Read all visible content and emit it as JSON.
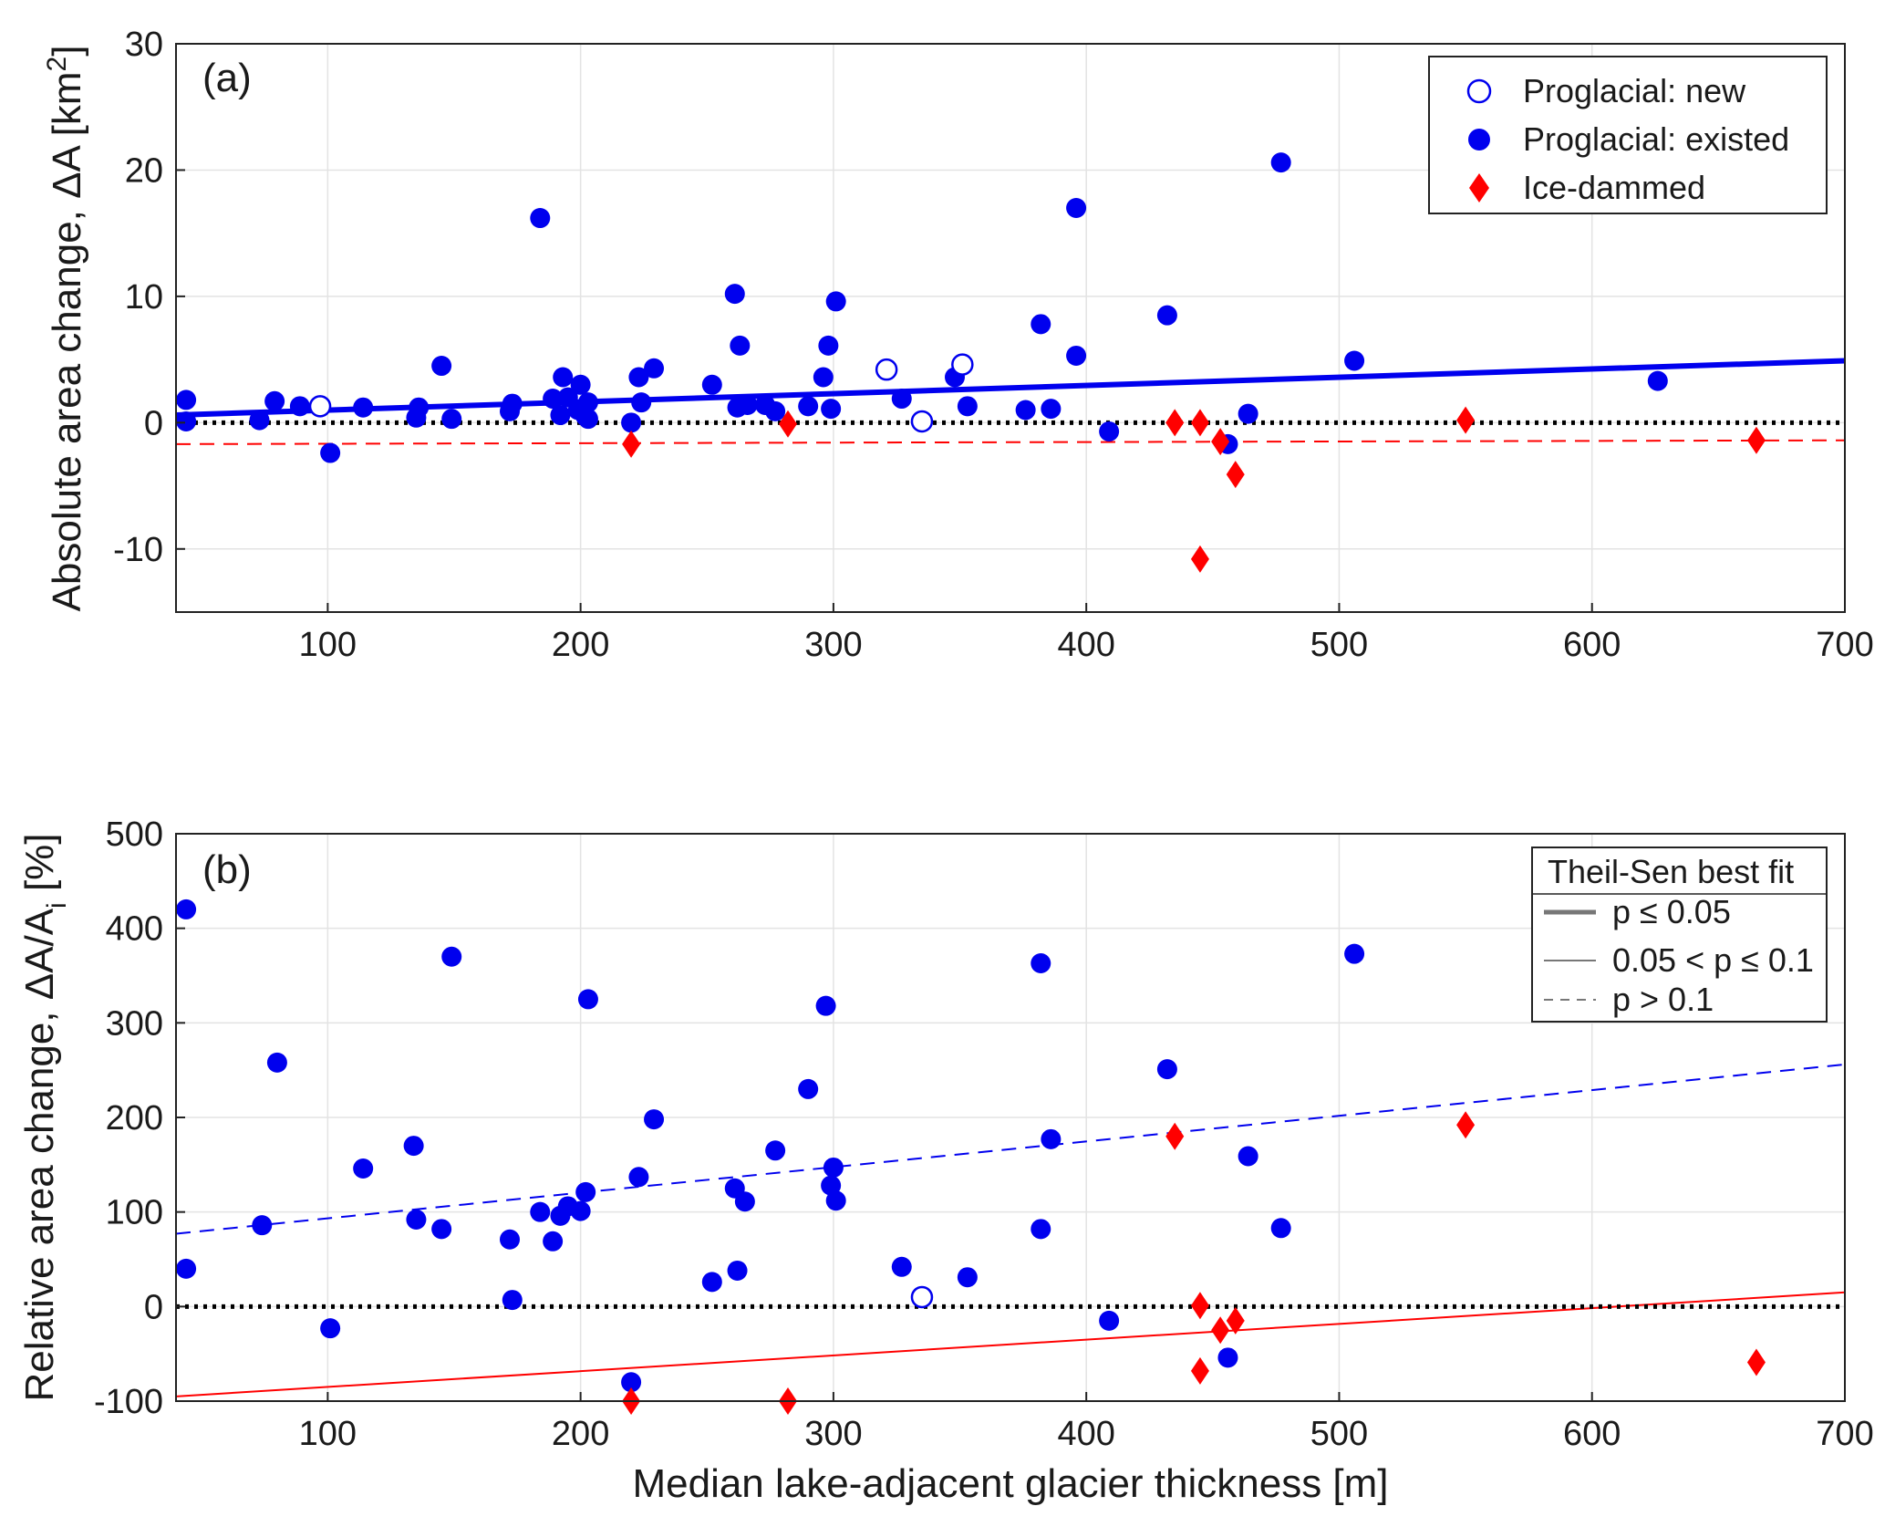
{
  "chart_data": [
    {
      "panel": "(a)",
      "type": "scatter",
      "xlabel": "Median lake-adjacent glacier thickness [m]",
      "ylabel": "Absolute area change, ΔA [km²]",
      "ylabel_parts": [
        "Absolute area change, ΔA [km",
        "2",
        "]"
      ],
      "xlim": [
        40,
        700
      ],
      "ylim": [
        -15,
        30
      ],
      "xticks": [
        100,
        200,
        300,
        400,
        500,
        600,
        700
      ],
      "yticks": [
        -10,
        0,
        10,
        20,
        30
      ],
      "grid": true,
      "legend": {
        "placement": "top-right",
        "entries": [
          {
            "label": "Proglacial: new",
            "marker": "open-circle",
            "color": "#0000ee"
          },
          {
            "label": "Proglacial: existed",
            "marker": "filled-circle",
            "color": "#0000ee"
          },
          {
            "label": "Ice-dammed",
            "marker": "diamond",
            "color": "#ff0000"
          }
        ]
      },
      "series": [
        {
          "marker": "filled-circle",
          "color": "#0000ee",
          "points": [
            [
              44,
              1.8
            ],
            [
              44,
              0.1
            ],
            [
              73,
              0.2
            ],
            [
              79,
              1.7
            ],
            [
              89,
              1.3
            ],
            [
              101,
              -2.4
            ],
            [
              114,
              1.2
            ],
            [
              135,
              0.4
            ],
            [
              136,
              1.2
            ],
            [
              145,
              4.5
            ],
            [
              149,
              0.3
            ],
            [
              172,
              0.9
            ],
            [
              173,
              1.5
            ],
            [
              184,
              16.2
            ],
            [
              189,
              1.9
            ],
            [
              192,
              0.6
            ],
            [
              193,
              3.6
            ],
            [
              195,
              2.0
            ],
            [
              199,
              1.0
            ],
            [
              200,
              3.0
            ],
            [
              202,
              0.5
            ],
            [
              203,
              0.3
            ],
            [
              203,
              1.6
            ],
            [
              220,
              0.0
            ],
            [
              223,
              3.6
            ],
            [
              224,
              1.6
            ],
            [
              229,
              4.3
            ],
            [
              252,
              3.0
            ],
            [
              261,
              10.2
            ],
            [
              262,
              1.2
            ],
            [
              263,
              6.1
            ],
            [
              266,
              1.4
            ],
            [
              273,
              1.4
            ],
            [
              277,
              0.9
            ],
            [
              290,
              1.3
            ],
            [
              296,
              3.6
            ],
            [
              298,
              6.1
            ],
            [
              299,
              1.1
            ],
            [
              301,
              9.6
            ],
            [
              327,
              1.9
            ],
            [
              348,
              3.6
            ],
            [
              353,
              1.3
            ],
            [
              376,
              1.0
            ],
            [
              382,
              7.8
            ],
            [
              386,
              1.1
            ],
            [
              396,
              17.0
            ],
            [
              396,
              5.3
            ],
            [
              409,
              -0.7
            ],
            [
              432,
              8.5
            ],
            [
              456,
              -1.7
            ],
            [
              464,
              0.7
            ],
            [
              477,
              20.6
            ],
            [
              506,
              4.9
            ],
            [
              626,
              3.3
            ]
          ]
        },
        {
          "marker": "open-circle",
          "color": "#0000ee",
          "points": [
            [
              97,
              1.3
            ],
            [
              321,
              4.2
            ],
            [
              335,
              0.1
            ],
            [
              351,
              4.6
            ]
          ]
        },
        {
          "marker": "diamond",
          "color": "#ff0000",
          "points": [
            [
              220,
              -1.7
            ],
            [
              282,
              -0.1
            ],
            [
              435,
              0.0
            ],
            [
              445,
              0.0
            ],
            [
              445,
              -10.8
            ],
            [
              453,
              -1.5
            ],
            [
              459,
              -4.1
            ],
            [
              550,
              0.2
            ],
            [
              665,
              -1.4
            ]
          ]
        }
      ],
      "fit_lines": [
        {
          "style": "thick-solid",
          "color": "#0000ee",
          "x": [
            40,
            700
          ],
          "y": [
            0.6,
            4.9
          ]
        },
        {
          "style": "dashed",
          "color": "#ff0000",
          "x": [
            40,
            700
          ],
          "y": [
            -1.7,
            -1.4
          ]
        },
        {
          "style": "dotted",
          "color": "#000000",
          "x": [
            40,
            700
          ],
          "y": [
            0,
            0
          ]
        }
      ]
    },
    {
      "panel": "(b)",
      "type": "scatter",
      "xlabel": "Median lake-adjacent glacier thickness [m]",
      "ylabel": "Relative area change, ΔA/Ai [%]",
      "ylabel_parts": [
        "Relative area change, ΔA/A",
        "i",
        " [%]"
      ],
      "xlim": [
        40,
        700
      ],
      "ylim": [
        -100,
        500
      ],
      "xticks": [
        100,
        200,
        300,
        400,
        500,
        600,
        700
      ],
      "yticks": [
        -100,
        0,
        100,
        200,
        300,
        400,
        500
      ],
      "grid": true,
      "legend": {
        "placement": "top-right",
        "title": "Theil-Sen best fit",
        "entries": [
          {
            "label": "p ≤ 0.05",
            "line": "thick-solid",
            "color": "#777777"
          },
          {
            "label": "0.05 < p ≤ 0.1",
            "line": "thin-solid",
            "color": "#777777"
          },
          {
            "label": "p > 0.1",
            "line": "dashed",
            "color": "#777777"
          }
        ]
      },
      "series": [
        {
          "marker": "filled-circle",
          "color": "#0000ee",
          "points": [
            [
              44,
              420
            ],
            [
              44,
              40
            ],
            [
              74,
              86
            ],
            [
              80,
              258
            ],
            [
              101,
              -23
            ],
            [
              114,
              146
            ],
            [
              134,
              170
            ],
            [
              135,
              92
            ],
            [
              145,
              82
            ],
            [
              149,
              370
            ],
            [
              172,
              71
            ],
            [
              173,
              7
            ],
            [
              184,
              100
            ],
            [
              189,
              69
            ],
            [
              192,
              96
            ],
            [
              195,
              106
            ],
            [
              200,
              101
            ],
            [
              202,
              121
            ],
            [
              203,
              325
            ],
            [
              220,
              -80
            ],
            [
              223,
              137
            ],
            [
              229,
              198
            ],
            [
              252,
              26
            ],
            [
              261,
              125
            ],
            [
              262,
              38
            ],
            [
              265,
              111
            ],
            [
              277,
              165
            ],
            [
              290,
              230
            ],
            [
              297,
              318
            ],
            [
              299,
              128
            ],
            [
              300,
              147
            ],
            [
              301,
              112
            ],
            [
              327,
              42
            ],
            [
              353,
              31
            ],
            [
              382,
              363
            ],
            [
              382,
              82
            ],
            [
              386,
              177
            ],
            [
              409,
              -15
            ],
            [
              432,
              251
            ],
            [
              456,
              -54
            ],
            [
              464,
              159
            ],
            [
              477,
              83
            ],
            [
              506,
              373
            ]
          ]
        },
        {
          "marker": "open-circle",
          "color": "#0000ee",
          "points": [
            [
              335,
              10
            ]
          ]
        },
        {
          "marker": "diamond",
          "color": "#ff0000",
          "points": [
            [
              220,
              -100
            ],
            [
              282,
              -100
            ],
            [
              435,
              180
            ],
            [
              445,
              1
            ],
            [
              445,
              -68
            ],
            [
              453,
              -25
            ],
            [
              459,
              -15
            ],
            [
              550,
              192
            ],
            [
              665,
              -59
            ]
          ]
        }
      ],
      "fit_lines": [
        {
          "style": "dashed",
          "color": "#0000ee",
          "x": [
            40,
            700
          ],
          "y": [
            77,
            256
          ]
        },
        {
          "style": "thin-solid",
          "color": "#ff0000",
          "x": [
            40,
            700
          ],
          "y": [
            -95,
            15
          ]
        },
        {
          "style": "dotted",
          "color": "#000000",
          "x": [
            40,
            700
          ],
          "y": [
            0,
            0
          ]
        }
      ]
    }
  ]
}
